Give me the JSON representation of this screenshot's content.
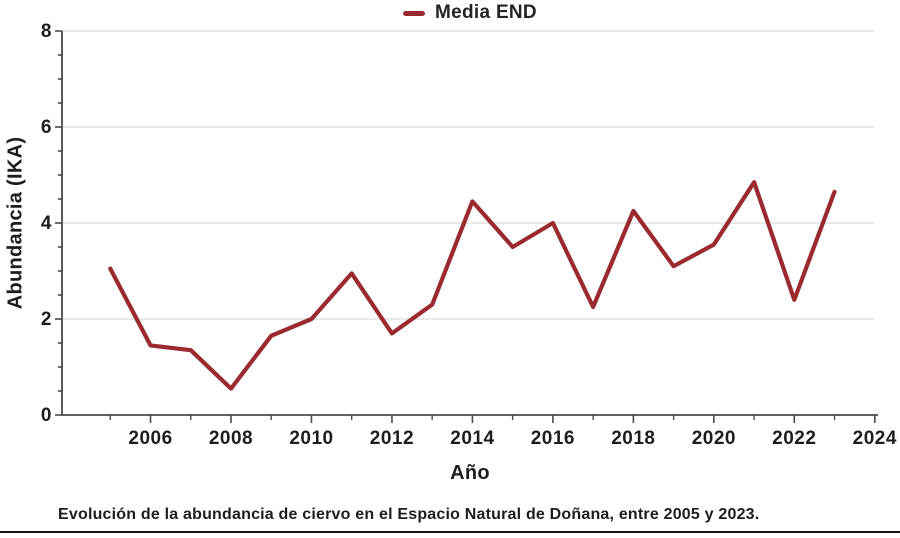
{
  "legend": {
    "label": "Media END"
  },
  "caption": "Evolución de la abundancia de ciervo en el Espacio Natural de Doñana, entre 2005 y 2023.",
  "chart_data": {
    "type": "line",
    "title": "",
    "xlabel": "Año",
    "ylabel": "Abundancia (IKA)",
    "xlim": [
      2003.8,
      2024.08
    ],
    "ylim": [
      0,
      8
    ],
    "xticks_major": [
      2006,
      2008,
      2010,
      2012,
      2014,
      2016,
      2018,
      2020,
      2022,
      2024
    ],
    "xticks_minor": [
      2005,
      2007,
      2009,
      2011,
      2013,
      2015,
      2017,
      2019,
      2021,
      2023
    ],
    "yticks_major": [
      0,
      2,
      4,
      6,
      8
    ],
    "ytick_minor_step": 0.5,
    "grid": "horizontal-major",
    "legend_position": "top-center",
    "series": [
      {
        "name": "Media END",
        "color": "#9b2a30",
        "x": [
          2005,
          2006,
          2007,
          2008,
          2009,
          2010,
          2011,
          2012,
          2013,
          2014,
          2015,
          2016,
          2017,
          2018,
          2019,
          2020,
          2021,
          2022,
          2023
        ],
        "values": [
          3.05,
          1.45,
          1.35,
          0.55,
          1.65,
          2.0,
          2.95,
          1.7,
          2.3,
          4.45,
          3.5,
          4.0,
          2.25,
          4.25,
          3.1,
          3.55,
          4.85,
          2.4,
          4.65
        ]
      }
    ],
    "colors": {
      "line": "#9b2a30",
      "grid": "#e2e2e2",
      "axis": "#4a4a4a",
      "text": "#1d1d1b"
    }
  }
}
